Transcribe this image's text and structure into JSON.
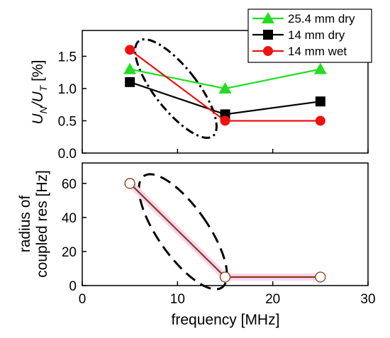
{
  "chart_data": [
    {
      "type": "line",
      "panel": "top",
      "ylabel_main": "U",
      "ylabel_sub1": "N",
      "ylabel_mid": "/U",
      "ylabel_sub2": "T",
      "ylabel_unit": " [%]",
      "xlim": [
        0,
        30
      ],
      "ylim": [
        0.0,
        1.9
      ],
      "yticks": [
        "0.0",
        "0.5",
        "1.0",
        "1.5"
      ],
      "series": [
        {
          "name": "25.4 mm dry",
          "color": "#22dd22",
          "marker": "triangle",
          "x": [
            5,
            15,
            25
          ],
          "y": [
            1.3,
            1.0,
            1.3
          ]
        },
        {
          "name": "14 mm dry",
          "color": "#000000",
          "marker": "square",
          "x": [
            5,
            15,
            25
          ],
          "y": [
            1.1,
            0.6,
            0.8
          ]
        },
        {
          "name": "14 mm wet",
          "color": "#ee1111",
          "marker": "circle",
          "x": [
            5,
            15,
            25
          ],
          "y": [
            1.6,
            0.5,
            0.5
          ]
        }
      ],
      "legend_position": "top-right, above plot"
    },
    {
      "type": "line",
      "panel": "bottom",
      "ylabel_line1": "radius of",
      "ylabel_line2": "coupled res [Hz]",
      "xlabel": "frequency [MHz]",
      "xlim": [
        0,
        30
      ],
      "ylim": [
        0,
        72
      ],
      "xticks": [
        "0",
        "10",
        "20",
        "30"
      ],
      "yticks": [
        "0",
        "20",
        "40",
        "60"
      ],
      "series": [
        {
          "color": "#8b3a1a",
          "marker": "open-circle",
          "x": [
            5,
            15,
            25
          ],
          "y": [
            60,
            5,
            5
          ]
        }
      ]
    }
  ]
}
